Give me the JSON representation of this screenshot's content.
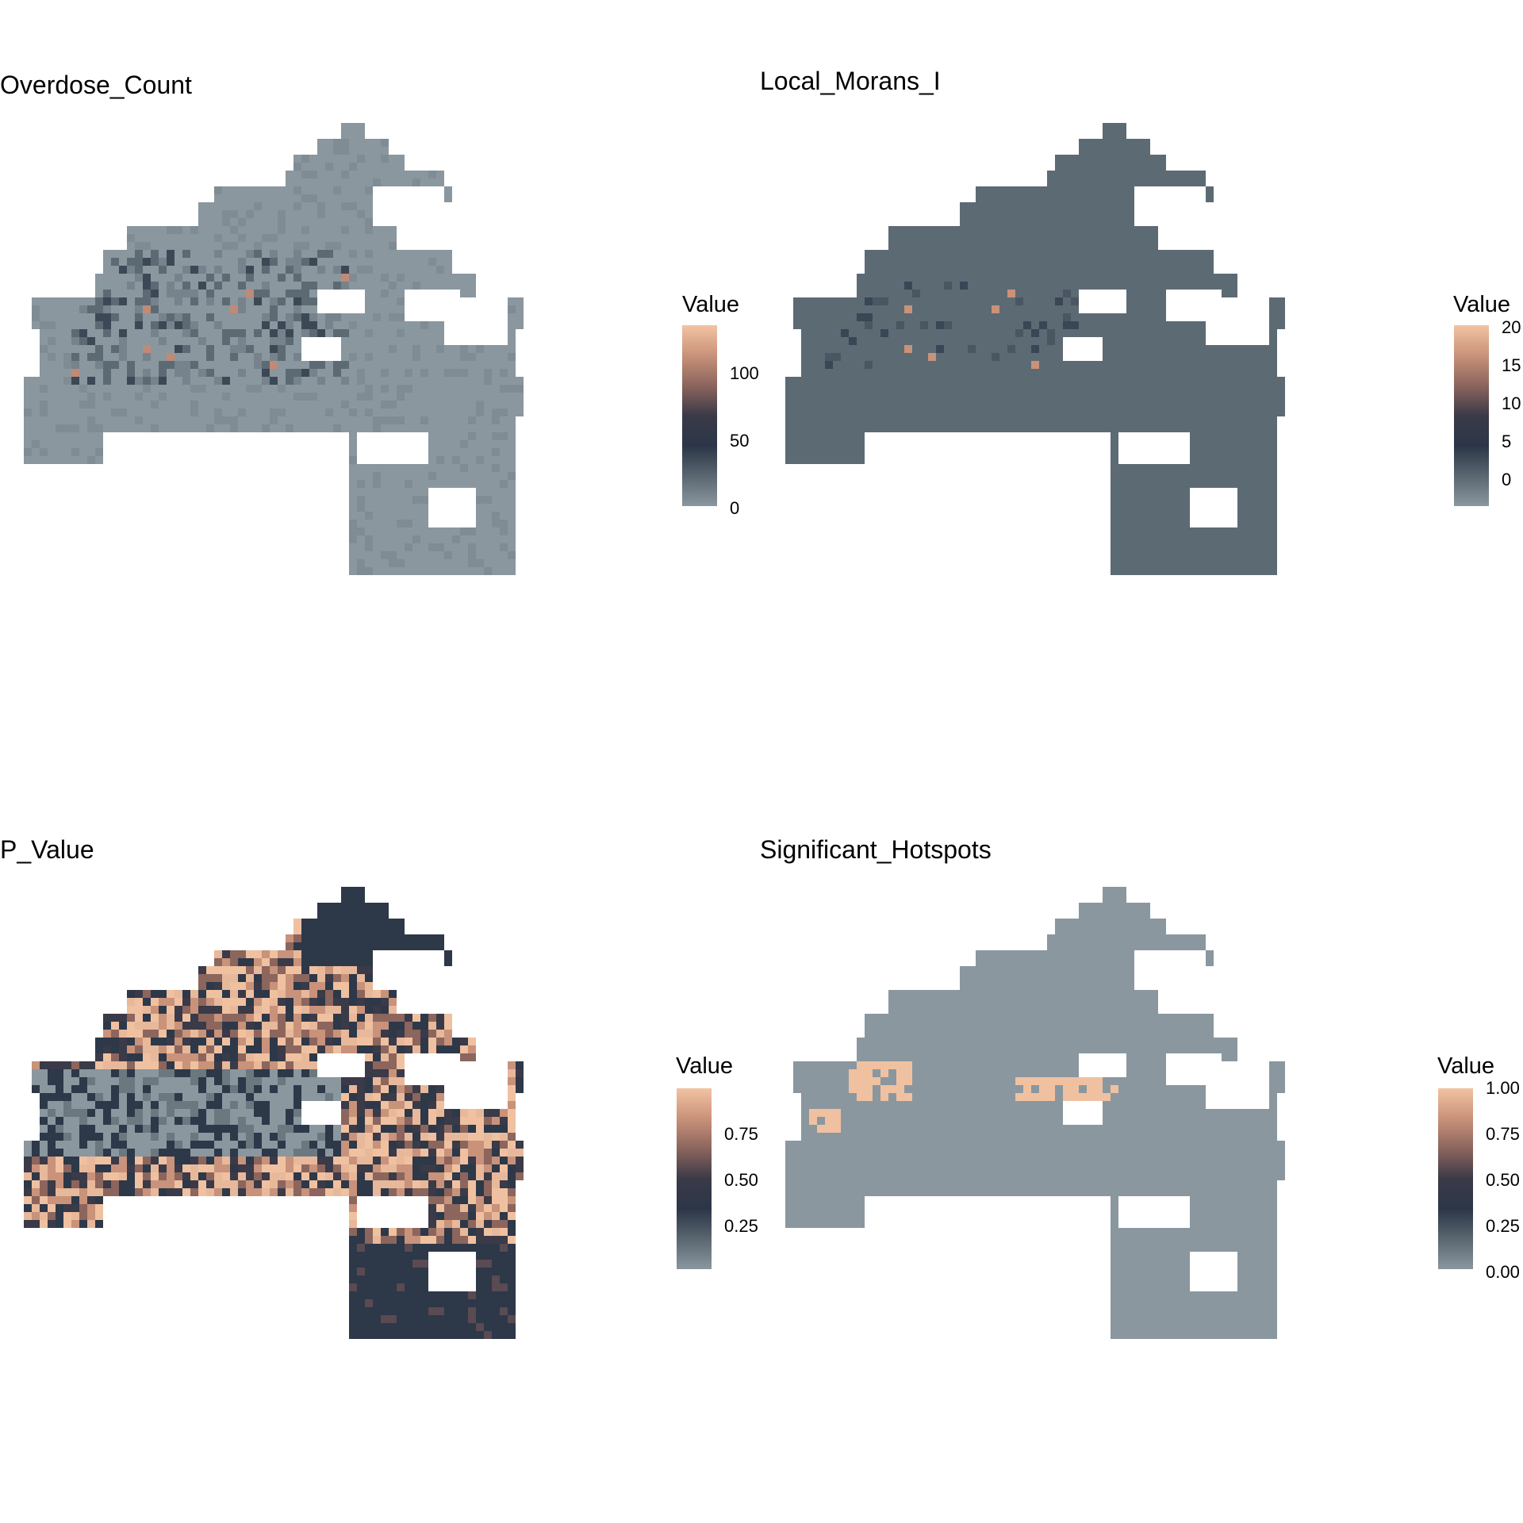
{
  "figure": {
    "panels": [
      {
        "id": "overdose",
        "title": "Overdose_Count",
        "legend": {
          "title": "Value",
          "labels": [
            "100",
            "50",
            "0"
          ]
        },
        "fill_style": "counts"
      },
      {
        "id": "morans",
        "title": "Local_Morans_I",
        "legend": {
          "title": "Value",
          "labels": [
            "20",
            "15",
            "10",
            "5",
            "0"
          ]
        },
        "fill_style": "uniform-dark"
      },
      {
        "id": "pvalue",
        "title": "P_Value",
        "legend": {
          "title": "Value",
          "labels": [
            "0.75",
            "0.50",
            "0.25"
          ]
        },
        "fill_style": "pvalues"
      },
      {
        "id": "hotspots",
        "title": "Significant_Hotspots",
        "legend": {
          "title": "Value",
          "labels": [
            "1.00",
            "0.75",
            "0.50",
            "0.25",
            "0.00"
          ]
        },
        "fill_style": "binary"
      }
    ],
    "colors": {
      "low": "#8a979f",
      "mid_low": "#5c6a74",
      "mid": "#2d3849",
      "mid_high": "#a07a6e",
      "high": "#f0c1a0",
      "background": "#ffffff"
    },
    "colorbar_stops": [
      "#f2c3a2",
      "#c9927a",
      "#8c655d",
      "#3a3a48",
      "#2c3648",
      "#5a6670",
      "#8a979f"
    ]
  }
}
